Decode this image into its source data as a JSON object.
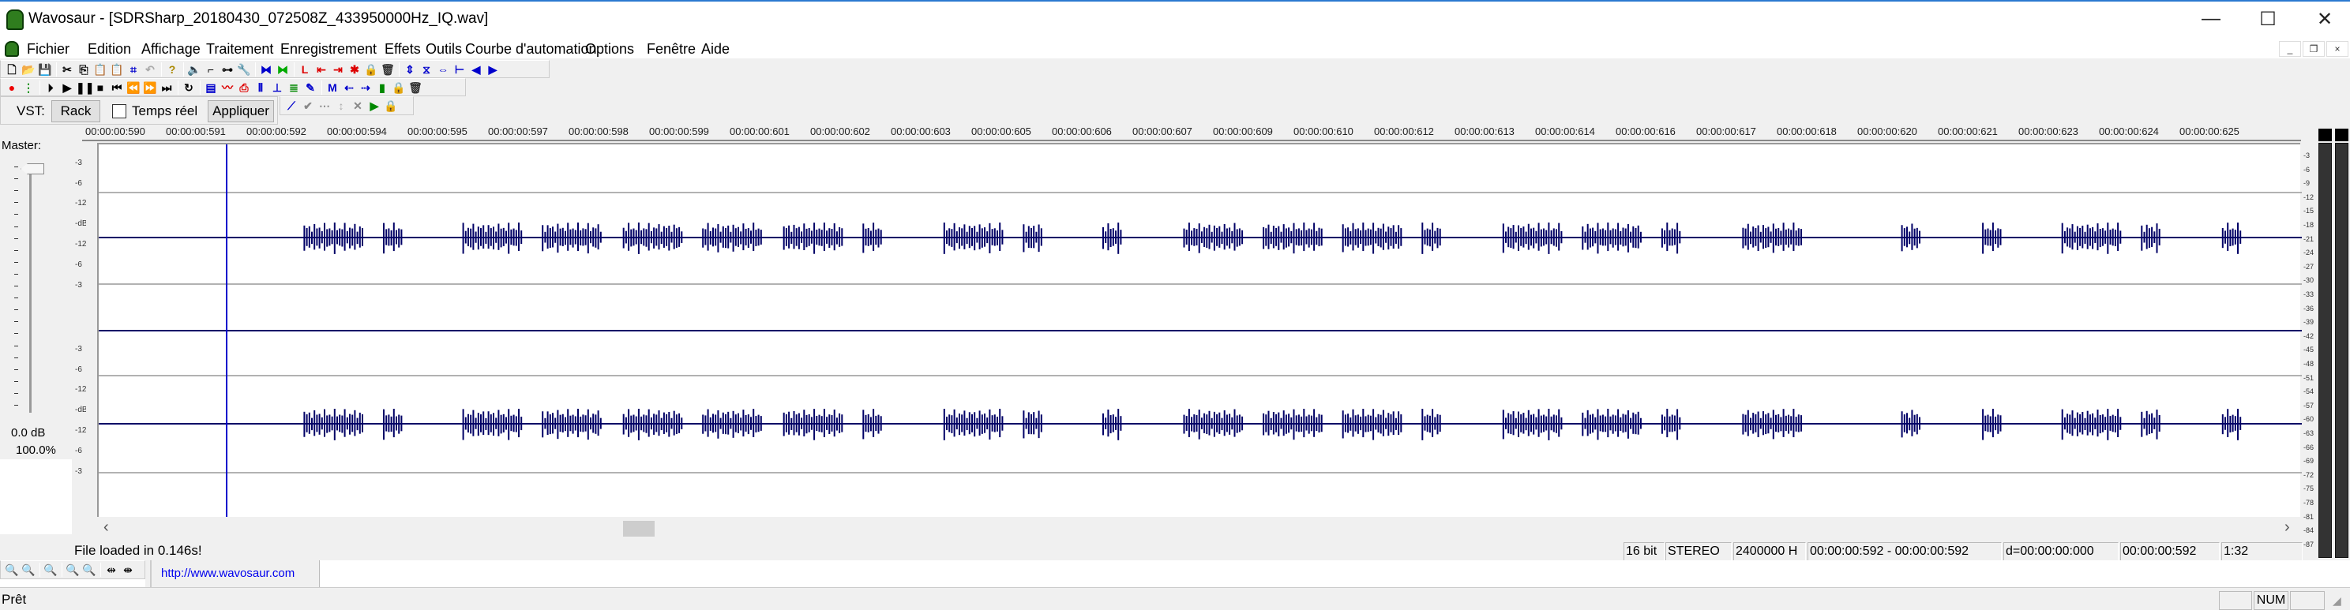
{
  "window": {
    "title": "Wavosaur - [SDRSharp_20180430_072508Z_433950000Hz_IQ.wav]",
    "minimize": "—",
    "maximize": "☐",
    "close": "✕"
  },
  "menu": [
    "Fichier",
    "Edition",
    "Affichage",
    "Traitement",
    "Enregistrement",
    "Effets",
    "Outils",
    "Courbe d'automation",
    "Options",
    "Fenêtre",
    "Aide"
  ],
  "mdi": {
    "minimize": "_",
    "restore": "❐",
    "close": "×"
  },
  "toolbar1": [
    "new-file",
    "open-file",
    "save",
    "|",
    "cut",
    "copy",
    "paste",
    "paste-mix",
    "crop",
    "undo",
    "|",
    "help",
    "|",
    "speaker",
    "marker-link",
    "marker-split",
    "wrench",
    "|",
    "wave-select",
    "wave-normalize",
    "|",
    "loop-marker",
    "go-left-red",
    "go-right-red",
    "delete-markers",
    "lock",
    "trash",
    "|",
    "fit-view",
    "zoom-wave",
    "expand",
    "select-range",
    "prev-blue",
    "next-blue"
  ],
  "toolbar2": [
    "record",
    "vu-meter",
    "|",
    "play-from",
    "play",
    "pause",
    "stop",
    "go-start",
    "rewind",
    "fast-forward",
    "go-end",
    "|",
    "loop",
    "|",
    "batch",
    "spectrum",
    "pdf",
    "waveform-split",
    "envelope",
    "bpm",
    "pencil",
    "|",
    "marker-m",
    "marker-left",
    "marker-right",
    "marker-select",
    "lock",
    "trash"
  ],
  "toolbar3": {
    "vst_label": "VST:",
    "rack": "Rack",
    "realtime": "Temps réel",
    "realtime_checked": false,
    "apply": "Appliquer",
    "auto_icons": [
      "curve",
      "check",
      "dots",
      "updown",
      "delete",
      "play-box",
      "lock"
    ]
  },
  "ruler": [
    "00:00:00:590",
    "00:00:00:591",
    "00:00:00:592",
    "00:00:00:594",
    "00:00:00:595",
    "00:00:00:597",
    "00:00:00:598",
    "00:00:00:599",
    "00:00:00:601",
    "00:00:00:602",
    "00:00:00:603",
    "00:00:00:605",
    "00:00:00:606",
    "00:00:00:607",
    "00:00:00:609",
    "00:00:00:610",
    "00:00:00:612",
    "00:00:00:613",
    "00:00:00:614",
    "00:00:00:616",
    "00:00:00:617",
    "00:00:00:618",
    "00:00:00:620",
    "00:00:00:621",
    "00:00:00:623",
    "00:00:00:624",
    "00:00:00:625"
  ],
  "master": {
    "label": "Master:",
    "db": "0.0 dB",
    "percent": "100.0%",
    "level_db": 0
  },
  "channel_scale": [
    "-3",
    "-6",
    "-12",
    "-dB",
    "-12",
    "-6",
    "-3"
  ],
  "db_scale": [
    "-3",
    "-6",
    "-9",
    "-12",
    "-15",
    "-18",
    "-21",
    "-24",
    "-27",
    "-30",
    "-33",
    "-36",
    "-39",
    "-42",
    "-45",
    "-48",
    "-51",
    "-54",
    "-57",
    "-60",
    "-63",
    "-66",
    "-69",
    "-72",
    "-75",
    "-78",
    "-81",
    "-84",
    "-87"
  ],
  "colors": {
    "waveform": "#000066",
    "cursor": "#0000cc",
    "meter": "#333333",
    "link": "#0000ee"
  },
  "status": {
    "message": "File loaded in 0.146s!",
    "bits": "16 bit",
    "channels": "STEREO",
    "rate": "2400000 H",
    "selection": "00:00:00:592 - 00:00:00:592",
    "duration": "d=00:00:00:000",
    "position": "00:00:00:592",
    "zoom": "1:32"
  },
  "link": "http://www.wavosaur.com",
  "statusbar": {
    "ready": "Prêt",
    "num": "NUM"
  }
}
